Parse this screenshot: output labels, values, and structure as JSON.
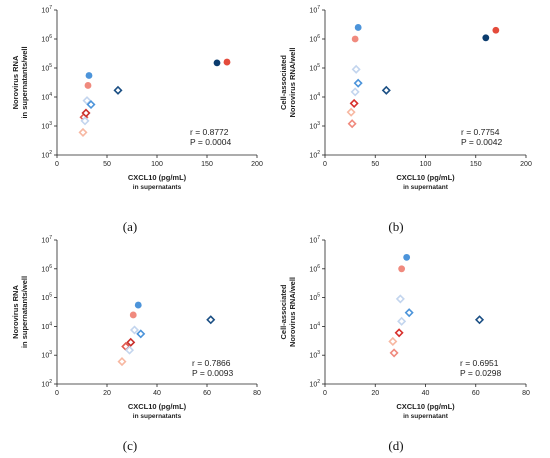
{
  "chart_data": [
    {
      "type": "scatter",
      "panel_label": "(a)",
      "ylabel_lines": [
        "Norovirus RNA",
        "in supernatants/well"
      ],
      "xlabel": "CXCL10  (pg/mL)",
      "xlabel_sub": "in supernatants",
      "xlim": [
        0,
        200
      ],
      "xticks": [
        "0",
        "50",
        "100",
        "150",
        "200"
      ],
      "ylim": [
        100,
        10000000
      ],
      "y_scale": "log",
      "yticks": [
        "2",
        "3",
        "4",
        "5",
        "6",
        "7"
      ],
      "stats": [
        "r = 0.8772",
        "P = 0.0004"
      ],
      "points": [
        {
          "x": 26,
          "y": 600,
          "shape": "diamond",
          "color": "#f7b8a2"
        },
        {
          "x": 27,
          "y": 2000,
          "shape": "diamond",
          "color": "#e15a50"
        },
        {
          "x": 29,
          "y": 2800,
          "shape": "diamond",
          "color": "#c9302c"
        },
        {
          "x": 28,
          "y": 1500,
          "shape": "diamond",
          "color": "#c3d5ee"
        },
        {
          "x": 30,
          "y": 7500,
          "shape": "diamond",
          "color": "#c3d5ee"
        },
        {
          "x": 31,
          "y": 25000,
          "shape": "circle",
          "color": "#f08a7e"
        },
        {
          "x": 32,
          "y": 55000,
          "shape": "circle",
          "color": "#4c94da"
        },
        {
          "x": 34,
          "y": 5500,
          "shape": "diamond",
          "color": "#4c94da"
        },
        {
          "x": 61,
          "y": 17000,
          "shape": "diamond",
          "color": "#1b4f84"
        },
        {
          "x": 160,
          "y": 150000,
          "shape": "circle",
          "color": "#0b3c6e"
        },
        {
          "x": 170,
          "y": 160000,
          "shape": "circle",
          "color": "#e44b3b"
        }
      ]
    },
    {
      "type": "scatter",
      "panel_label": "(b)",
      "ylabel_lines": [
        "Cell-associated",
        "Norovirus RNA/well"
      ],
      "xlabel": "CXCL10  (pg/mL)",
      "xlabel_sub": "in supernatant",
      "xlim": [
        0,
        200
      ],
      "xticks": [
        "0",
        "50",
        "100",
        "150",
        "200"
      ],
      "ylim": [
        100,
        10000000
      ],
      "y_scale": "log",
      "yticks": [
        "2",
        "3",
        "4",
        "5",
        "6",
        "7"
      ],
      "stats": [
        "r = 0.7754",
        "P = 0.0042"
      ],
      "points": [
        {
          "x": 27,
          "y": 1200,
          "shape": "diamond",
          "color": "#f08a7e"
        },
        {
          "x": 26,
          "y": 3000,
          "shape": "diamond",
          "color": "#f7b8a2"
        },
        {
          "x": 29,
          "y": 6000,
          "shape": "diamond",
          "color": "#d8302c"
        },
        {
          "x": 30,
          "y": 15000,
          "shape": "diamond",
          "color": "#c3d5ee"
        },
        {
          "x": 31,
          "y": 90000,
          "shape": "diamond",
          "color": "#c3d5ee"
        },
        {
          "x": 33,
          "y": 30000,
          "shape": "diamond",
          "color": "#4c94da"
        },
        {
          "x": 30,
          "y": 1000000,
          "shape": "circle",
          "color": "#f08a7e"
        },
        {
          "x": 33,
          "y": 2500000,
          "shape": "circle",
          "color": "#4c94da"
        },
        {
          "x": 61,
          "y": 17000,
          "shape": "diamond",
          "color": "#1b4f84"
        },
        {
          "x": 160,
          "y": 1100000,
          "shape": "circle",
          "color": "#0b3c6e"
        },
        {
          "x": 170,
          "y": 2000000,
          "shape": "circle",
          "color": "#e44b3b"
        }
      ]
    },
    {
      "type": "scatter",
      "panel_label": "(c)",
      "ylabel_lines": [
        "Norovirus RNA",
        "in supernatants/well"
      ],
      "xlabel": "CXCL10  (pg/mL)",
      "xlabel_sub": "in supernatants",
      "xlim": [
        0,
        80
      ],
      "xticks": [
        "0",
        "20",
        "40",
        "60",
        "80"
      ],
      "ylim": [
        100,
        10000000
      ],
      "y_scale": "log",
      "yticks": [
        "2",
        "3",
        "4",
        "5",
        "6",
        "7"
      ],
      "stats": [
        "r = 0.7866",
        "P = 0.0093"
      ],
      "points": [
        {
          "x": 26,
          "y": 600,
          "shape": "diamond",
          "color": "#f7b8a2"
        },
        {
          "x": 27.5,
          "y": 2000,
          "shape": "diamond",
          "color": "#e15a50"
        },
        {
          "x": 29.5,
          "y": 2800,
          "shape": "diamond",
          "color": "#c9302c"
        },
        {
          "x": 29,
          "y": 1500,
          "shape": "diamond",
          "color": "#c3d5ee"
        },
        {
          "x": 31,
          "y": 7500,
          "shape": "diamond",
          "color": "#c3d5ee"
        },
        {
          "x": 30.5,
          "y": 25000,
          "shape": "circle",
          "color": "#f08a7e"
        },
        {
          "x": 32.5,
          "y": 55000,
          "shape": "circle",
          "color": "#4c94da"
        },
        {
          "x": 33.5,
          "y": 5500,
          "shape": "diamond",
          "color": "#4c94da"
        },
        {
          "x": 61.5,
          "y": 17000,
          "shape": "diamond",
          "color": "#1b4f84"
        }
      ]
    },
    {
      "type": "scatter",
      "panel_label": "(d)",
      "ylabel_lines": [
        "Cell-associated",
        "Norovirus RNA/well"
      ],
      "xlabel": "CXCL10  (pg/mL)",
      "xlabel_sub": "in supernatant",
      "xlim": [
        0,
        80
      ],
      "xticks": [
        "0",
        "20",
        "40",
        "60",
        "80"
      ],
      "ylim": [
        100,
        10000000
      ],
      "y_scale": "log",
      "yticks": [
        "2",
        "3",
        "4",
        "5",
        "6",
        "7"
      ],
      "stats": [
        "r = 0.6951",
        "P = 0.0298"
      ],
      "points": [
        {
          "x": 27.5,
          "y": 1200,
          "shape": "diamond",
          "color": "#f08a7e"
        },
        {
          "x": 27,
          "y": 3000,
          "shape": "diamond",
          "color": "#f7b8a2"
        },
        {
          "x": 29.5,
          "y": 6000,
          "shape": "diamond",
          "color": "#d8302c"
        },
        {
          "x": 30.5,
          "y": 15000,
          "shape": "diamond",
          "color": "#c3d5ee"
        },
        {
          "x": 30,
          "y": 90000,
          "shape": "diamond",
          "color": "#c3d5ee"
        },
        {
          "x": 33.5,
          "y": 30000,
          "shape": "diamond",
          "color": "#4c94da"
        },
        {
          "x": 30.5,
          "y": 1000000,
          "shape": "circle",
          "color": "#f08a7e"
        },
        {
          "x": 32.5,
          "y": 2500000,
          "shape": "circle",
          "color": "#4c94da"
        },
        {
          "x": 61.5,
          "y": 17000,
          "shape": "diamond",
          "color": "#1b4f84"
        }
      ]
    }
  ]
}
